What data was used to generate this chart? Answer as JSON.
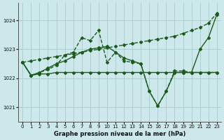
{
  "background_color": "#cce8ea",
  "grid_color": "#aacfd0",
  "line_color": "#1a5c1a",
  "title": "Graphe pression niveau de la mer (hPa)",
  "xlim": [
    -0.5,
    23.5
  ],
  "ylim": [
    1020.5,
    1024.6
  ],
  "yticks": [
    1021,
    1022,
    1023,
    1024
  ],
  "xticks": [
    0,
    1,
    2,
    3,
    4,
    5,
    6,
    7,
    8,
    9,
    10,
    11,
    12,
    13,
    14,
    15,
    16,
    17,
    18,
    19,
    20,
    21,
    22,
    23
  ],
  "series": [
    {
      "x": [
        0,
        1,
        2,
        3,
        4,
        5,
        6,
        7,
        8,
        9,
        10,
        11,
        12,
        13,
        14,
        15,
        16,
        17,
        18,
        19,
        20,
        21,
        22,
        23
      ],
      "y": [
        1022.55,
        1022.1,
        1022.15,
        1022.15,
        1022.2,
        1022.2,
        1022.2,
        1022.2,
        1022.2,
        1022.2,
        1022.2,
        1022.2,
        1022.2,
        1022.2,
        1022.2,
        1022.2,
        1022.2,
        1022.2,
        1022.2,
        1022.2,
        1022.2,
        1022.2,
        1022.2,
        1022.2
      ],
      "linestyle": "-",
      "marker": "D",
      "markersize": 2.0,
      "linewidth": 1.0
    },
    {
      "x": [
        0,
        1,
        2,
        3,
        4,
        5,
        6,
        7,
        8,
        9,
        10,
        11,
        12,
        13,
        14,
        15,
        16,
        17,
        18,
        19,
        20,
        21,
        22,
        23
      ],
      "y": [
        1022.55,
        1022.6,
        1022.65,
        1022.7,
        1022.75,
        1022.8,
        1022.85,
        1022.9,
        1022.95,
        1023.0,
        1023.05,
        1023.1,
        1023.15,
        1023.2,
        1023.25,
        1023.3,
        1023.35,
        1023.4,
        1023.45,
        1023.55,
        1023.65,
        1023.75,
        1023.9,
        1024.25
      ],
      "linestyle": "--",
      "marker": "D",
      "markersize": 2.0,
      "linewidth": 1.0
    },
    {
      "x": [
        0,
        1,
        2,
        3,
        4,
        5,
        6,
        7,
        8,
        9,
        10,
        11,
        12,
        13,
        14,
        15,
        16,
        17,
        18,
        19,
        20,
        21,
        22,
        23
      ],
      "y": [
        1022.55,
        1022.1,
        1022.2,
        1022.3,
        1022.45,
        1022.8,
        1022.9,
        1023.4,
        1023.3,
        1023.65,
        1022.55,
        1022.9,
        1022.6,
        1022.55,
        1022.5,
        1021.55,
        1021.05,
        1021.55,
        1022.25,
        1022.25,
        1022.2,
        1022.2,
        1022.2,
        1022.2
      ],
      "linestyle": "--",
      "marker": "D",
      "markersize": 2.0,
      "linewidth": 1.0
    },
    {
      "x": [
        0,
        1,
        2,
        3,
        4,
        5,
        6,
        7,
        8,
        9,
        10,
        11,
        12,
        13,
        14,
        15,
        16,
        17,
        18,
        19,
        20,
        21,
        22,
        23
      ],
      "y": [
        1022.55,
        1022.1,
        1022.2,
        1022.35,
        1022.5,
        1022.6,
        1022.75,
        1022.9,
        1023.0,
        1023.05,
        1023.1,
        1022.9,
        1022.7,
        1022.6,
        1022.5,
        1021.55,
        1021.05,
        1021.55,
        1022.2,
        1022.2,
        1022.2,
        1023.0,
        1023.4,
        1024.2
      ],
      "linestyle": "-",
      "marker": "D",
      "markersize": 2.0,
      "linewidth": 1.0
    }
  ]
}
